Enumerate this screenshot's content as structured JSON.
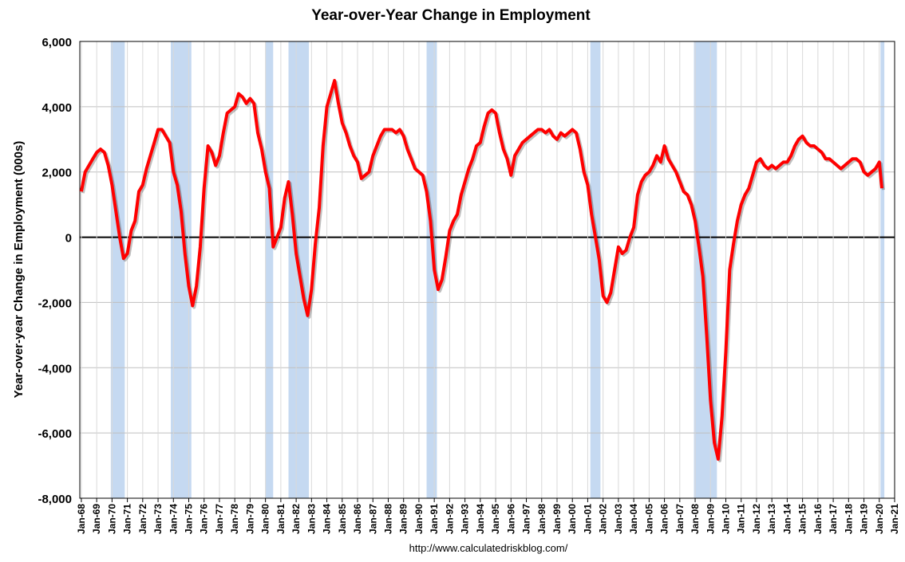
{
  "chart_data": {
    "type": "line",
    "title": "Year-over-Year Change in Employment",
    "y_label": "Year-over-year Change in Employment (000s)",
    "source": "http://www.calculatedriskblog.com/",
    "series": [
      {
        "name": "Year-over-year Change in Employment",
        "color": "#ff0000",
        "x": [
          1968,
          1968.25,
          1968.5,
          1968.75,
          1969,
          1969.25,
          1969.5,
          1969.75,
          1970,
          1970.25,
          1970.5,
          1970.75,
          1971,
          1971.25,
          1971.5,
          1971.75,
          1972,
          1972.25,
          1972.5,
          1972.75,
          1973,
          1973.25,
          1973.5,
          1973.75,
          1974,
          1974.25,
          1974.5,
          1974.75,
          1975,
          1975.25,
          1975.5,
          1975.75,
          1976,
          1976.25,
          1976.5,
          1976.75,
          1977,
          1977.25,
          1977.5,
          1977.75,
          1978,
          1978.25,
          1978.5,
          1978.75,
          1979,
          1979.25,
          1979.5,
          1979.75,
          1980,
          1980.25,
          1980.5,
          1980.75,
          1981,
          1981.25,
          1981.5,
          1981.75,
          1982,
          1982.25,
          1982.5,
          1982.75,
          1983,
          1983.25,
          1983.5,
          1983.75,
          1984,
          1984.25,
          1984.5,
          1984.75,
          1985,
          1985.25,
          1985.5,
          1985.75,
          1986,
          1986.25,
          1986.5,
          1986.75,
          1987,
          1987.25,
          1987.5,
          1987.75,
          1988,
          1988.25,
          1988.5,
          1988.75,
          1989,
          1989.25,
          1989.5,
          1989.75,
          1990,
          1990.25,
          1990.5,
          1990.75,
          1991,
          1991.25,
          1991.5,
          1991.75,
          1992,
          1992.25,
          1992.5,
          1992.75,
          1993,
          1993.25,
          1993.5,
          1993.75,
          1994,
          1994.25,
          1994.5,
          1994.75,
          1995,
          1995.25,
          1995.5,
          1995.75,
          1996,
          1996.25,
          1996.5,
          1996.75,
          1997,
          1997.25,
          1997.5,
          1997.75,
          1998,
          1998.25,
          1998.5,
          1998.75,
          1999,
          1999.25,
          1999.5,
          1999.75,
          2000,
          2000.25,
          2000.5,
          2000.75,
          2001,
          2001.25,
          2001.5,
          2001.75,
          2002,
          2002.25,
          2002.5,
          2002.75,
          2003,
          2003.25,
          2003.5,
          2003.75,
          2004,
          2004.25,
          2004.5,
          2004.75,
          2005,
          2005.25,
          2005.5,
          2005.75,
          2006,
          2006.25,
          2006.5,
          2006.75,
          2007,
          2007.25,
          2007.5,
          2007.75,
          2008,
          2008.25,
          2008.5,
          2008.75,
          2009,
          2009.25,
          2009.5,
          2009.75,
          2010,
          2010.25,
          2010.5,
          2010.75,
          2011,
          2011.25,
          2011.5,
          2011.75,
          2012,
          2012.25,
          2012.5,
          2012.75,
          2013,
          2013.25,
          2013.5,
          2013.75,
          2014,
          2014.25,
          2014.5,
          2014.75,
          2015,
          2015.25,
          2015.5,
          2015.75,
          2016,
          2016.25,
          2016.5,
          2016.75,
          2017,
          2017.25,
          2017.5,
          2017.75,
          2018,
          2018.25,
          2018.5,
          2018.75,
          2019,
          2019.25,
          2019.5,
          2019.75,
          2020,
          2020.17
        ],
        "values": [
          1400,
          2000,
          2200,
          2400,
          2600,
          2700,
          2600,
          2200,
          1600,
          800,
          0,
          -650,
          -500,
          200,
          500,
          1400,
          1600,
          2100,
          2500,
          2900,
          3300,
          3300,
          3100,
          2900,
          2000,
          1600,
          800,
          -500,
          -1500,
          -2100,
          -1500,
          -300,
          1500,
          2800,
          2600,
          2200,
          2500,
          3200,
          3800,
          3900,
          4000,
          4400,
          4300,
          4100,
          4250,
          4100,
          3200,
          2700,
          2000,
          1500,
          -300,
          0,
          300,
          1200,
          1700,
          700,
          -500,
          -1200,
          -1900,
          -2400,
          -1600,
          -200,
          900,
          2800,
          4000,
          4400,
          4800,
          4100,
          3500,
          3200,
          2800,
          2500,
          2300,
          1800,
          1900,
          2000,
          2500,
          2800,
          3100,
          3300,
          3300,
          3300,
          3200,
          3300,
          3100,
          2700,
          2400,
          2100,
          2000,
          1900,
          1400,
          500,
          -1000,
          -1600,
          -1300,
          -600,
          200,
          500,
          700,
          1300,
          1700,
          2100,
          2400,
          2800,
          2900,
          3400,
          3800,
          3900,
          3800,
          3200,
          2700,
          2400,
          1900,
          2500,
          2700,
          2900,
          3000,
          3100,
          3200,
          3300,
          3300,
          3200,
          3300,
          3100,
          3000,
          3200,
          3100,
          3200,
          3300,
          3200,
          2700,
          2000,
          1600,
          700,
          0,
          -700,
          -1800,
          -2000,
          -1700,
          -1000,
          -300,
          -500,
          -400,
          0,
          300,
          1300,
          1700,
          1900,
          2000,
          2200,
          2500,
          2300,
          2800,
          2400,
          2200,
          2000,
          1700,
          1400,
          1300,
          1000,
          500,
          -300,
          -1200,
          -3000,
          -5000,
          -6300,
          -6800,
          -5500,
          -3500,
          -1000,
          -200,
          500,
          1000,
          1300,
          1500,
          1900,
          2300,
          2400,
          2200,
          2100,
          2200,
          2100,
          2200,
          2300,
          2300,
          2500,
          2800,
          3000,
          3100,
          2900,
          2800,
          2800,
          2700,
          2600,
          2400,
          2400,
          2300,
          2200,
          2100,
          2200,
          2300,
          2400,
          2400,
          2300,
          2000,
          1900,
          2000,
          2100,
          2300,
          1500
        ]
      }
    ],
    "recessions": [
      [
        1969.92,
        1970.83
      ],
      [
        1973.83,
        1975.17
      ],
      [
        1980,
        1980.5
      ],
      [
        1981.5,
        1982.83
      ],
      [
        1990.5,
        1991.17
      ],
      [
        2001.17,
        2001.83
      ],
      [
        2007.92,
        2009.42
      ],
      [
        2020.08,
        2020.33
      ]
    ],
    "recession_color": "#c5d9f1",
    "xlim": [
      1967.9,
      2021
    ],
    "ylim": [
      -8000,
      6000
    ],
    "yticks": [
      {
        "value": -8000,
        "label": "-8,000"
      },
      {
        "value": -6000,
        "label": "-6,000"
      },
      {
        "value": -4000,
        "label": "-4,000"
      },
      {
        "value": -2000,
        "label": "-2,000"
      },
      0,
      {
        "value": 2000,
        "label": "2,000"
      },
      {
        "value": 4000,
        "label": "4,000"
      },
      {
        "value": 6000,
        "label": "6,000"
      }
    ],
    "xticks": [
      {
        "value": 1968,
        "label": "Jan-68"
      },
      {
        "value": 1969,
        "label": "Jan-69"
      },
      {
        "value": 1970,
        "label": "Jan-70"
      },
      {
        "value": 1971,
        "label": "Jan-71"
      },
      {
        "value": 1972,
        "label": "Jan-72"
      },
      {
        "value": 1973,
        "label": "Jan-73"
      },
      {
        "value": 1974,
        "label": "Jan-74"
      },
      {
        "value": 1975,
        "label": "Jan-75"
      },
      {
        "value": 1976,
        "label": "Jan-76"
      },
      {
        "value": 1977,
        "label": "Jan-77"
      },
      {
        "value": 1978,
        "label": "Jan-78"
      },
      {
        "value": 1979,
        "label": "Jan-79"
      },
      {
        "value": 1980,
        "label": "Jan-80"
      },
      {
        "value": 1981,
        "label": "Jan-81"
      },
      {
        "value": 1982,
        "label": "Jan-82"
      },
      {
        "value": 1983,
        "label": "Jan-83"
      },
      {
        "value": 1984,
        "label": "Jan-84"
      },
      {
        "value": 1985,
        "label": "Jan-85"
      },
      {
        "value": 1986,
        "label": "Jan-86"
      },
      {
        "value": 1987,
        "label": "Jan-87"
      },
      {
        "value": 1988,
        "label": "Jan-88"
      },
      {
        "value": 1989,
        "label": "Jan-89"
      },
      {
        "value": 1990,
        "label": "Jan-90"
      },
      {
        "value": 1991,
        "label": "Jan-91"
      },
      {
        "value": 1992,
        "label": "Jan-92"
      },
      {
        "value": 1993,
        "label": "Jan-93"
      },
      {
        "value": 1994,
        "label": "Jan-94"
      },
      {
        "value": 1995,
        "label": "Jan-95"
      },
      {
        "value": 1996,
        "label": "Jan-96"
      },
      {
        "value": 1997,
        "label": "Jan-97"
      },
      {
        "value": 1998,
        "label": "Jan-98"
      },
      {
        "value": 1999,
        "label": "Jan-99"
      },
      {
        "value": 2000,
        "label": "Jan-00"
      },
      {
        "value": 2001,
        "label": "Jan-01"
      },
      {
        "value": 2002,
        "label": "Jan-02"
      },
      {
        "value": 2003,
        "label": "Jan-03"
      },
      {
        "value": 2004,
        "label": "Jan-04"
      },
      {
        "value": 2005,
        "label": "Jan-05"
      },
      {
        "value": 2006,
        "label": "Jan-06"
      },
      {
        "value": 2007,
        "label": "Jan-07"
      },
      {
        "value": 2008,
        "label": "Jan-08"
      },
      {
        "value": 2009,
        "label": "Jan-09"
      },
      {
        "value": 2010,
        "label": "Jan-10"
      },
      {
        "value": 2011,
        "label": "Jan-11"
      },
      {
        "value": 2012,
        "label": "Jan-12"
      },
      {
        "value": 2013,
        "label": "Jan-13"
      },
      {
        "value": 2014,
        "label": "Jan-14"
      },
      {
        "value": 2015,
        "label": "Jan-15"
      },
      {
        "value": 2016,
        "label": "Jan-16"
      },
      {
        "value": 2017,
        "label": "Jan-17"
      },
      {
        "value": 2018,
        "label": "Jan-18"
      },
      {
        "value": 2019,
        "label": "Jan-19"
      },
      {
        "value": 2020,
        "label": "Jan-20"
      },
      {
        "value": 2021,
        "label": "Jan-21"
      }
    ],
    "grid": true
  }
}
